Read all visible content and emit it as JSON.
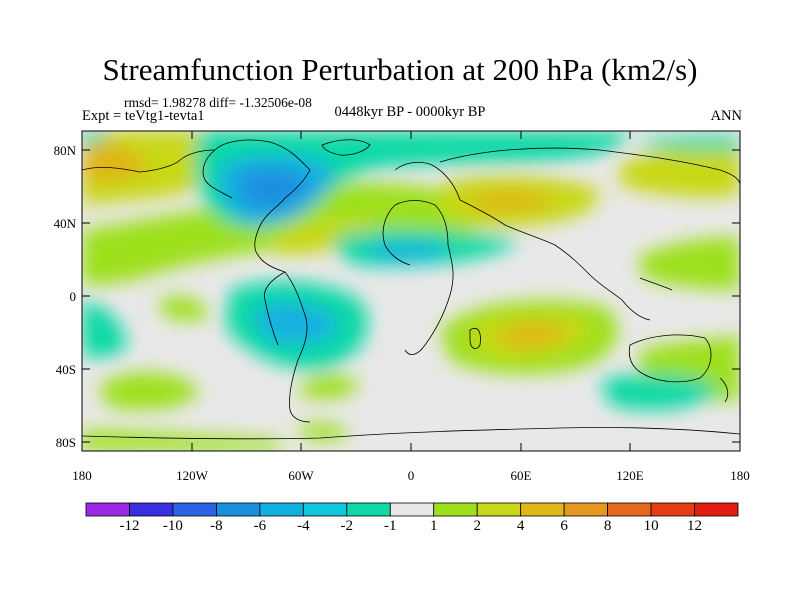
{
  "title": "Streamfunction Perturbation at 200 hPa (km2/s)",
  "stats": "rmsd= 1.98278 diff= -1.32506e-08",
  "experiment": "Expt = teVtg1-tevta1",
  "period": "0448kyr BP - 0000kyr BP",
  "season": "ANN",
  "map": {
    "projection": "cylindrical equidistant",
    "lat_labels": [
      "80N",
      "40N",
      "0",
      "40S",
      "80S"
    ],
    "lon_labels": [
      "180",
      "120W",
      "60W",
      "0",
      "60E",
      "120E",
      "180"
    ],
    "field": "streamfunction anomaly",
    "units": "km2/s"
  },
  "colorbar": {
    "labels": [
      "-12",
      "-10",
      "-8",
      "-6",
      "-4",
      "-2",
      "-1",
      "1",
      "2",
      "4",
      "6",
      "8",
      "10",
      "12"
    ],
    "colors": [
      "#9b2ae8",
      "#3a2fe0",
      "#2a63e6",
      "#1a8fe0",
      "#12b0e0",
      "#0fc8de",
      "#0fd9a6",
      "#e8e8e8",
      "#9ee01e",
      "#c8d818",
      "#e0b618",
      "#e49820",
      "#e66a1e",
      "#e43c14",
      "#e01c10"
    ]
  }
}
